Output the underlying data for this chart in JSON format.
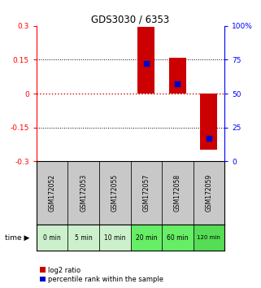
{
  "title": "GDS3030 / 6353",
  "samples": [
    "GSM172052",
    "GSM172053",
    "GSM172055",
    "GSM172057",
    "GSM172058",
    "GSM172059"
  ],
  "time_labels": [
    "0 min",
    "5 min",
    "10 min",
    "20 min",
    "60 min",
    "120 min"
  ],
  "log2_ratio": [
    0.0,
    0.0,
    0.0,
    0.295,
    0.16,
    -0.25
  ],
  "percentile_rank": [
    null,
    null,
    null,
    72,
    57,
    17
  ],
  "ylim_left": [
    -0.3,
    0.3
  ],
  "ylim_right": [
    0,
    100
  ],
  "yticks_left": [
    -0.3,
    -0.15,
    0,
    0.15,
    0.3
  ],
  "yticks_right": [
    0,
    25,
    50,
    75,
    100
  ],
  "ytick_labels_left": [
    "-0.3",
    "-0.15",
    "0",
    "0.15",
    "0.3"
  ],
  "ytick_labels_right": [
    "0",
    "25",
    "50",
    "75",
    "100%"
  ],
  "bar_color": "#cc0000",
  "dot_color": "#0000cc",
  "legend": [
    "log2 ratio",
    "percentile rank within the sample"
  ],
  "bg_gray": "#c8c8c8",
  "bg_green_light": "#ccf0cc",
  "bg_green_dark": "#66dd66",
  "hline_color": "#cc0000",
  "bar_width": 0.55,
  "green_colors": [
    "#ccf0cc",
    "#ccf0cc",
    "#ccf0cc",
    "#66ee66",
    "#66ee66",
    "#55dd55"
  ]
}
